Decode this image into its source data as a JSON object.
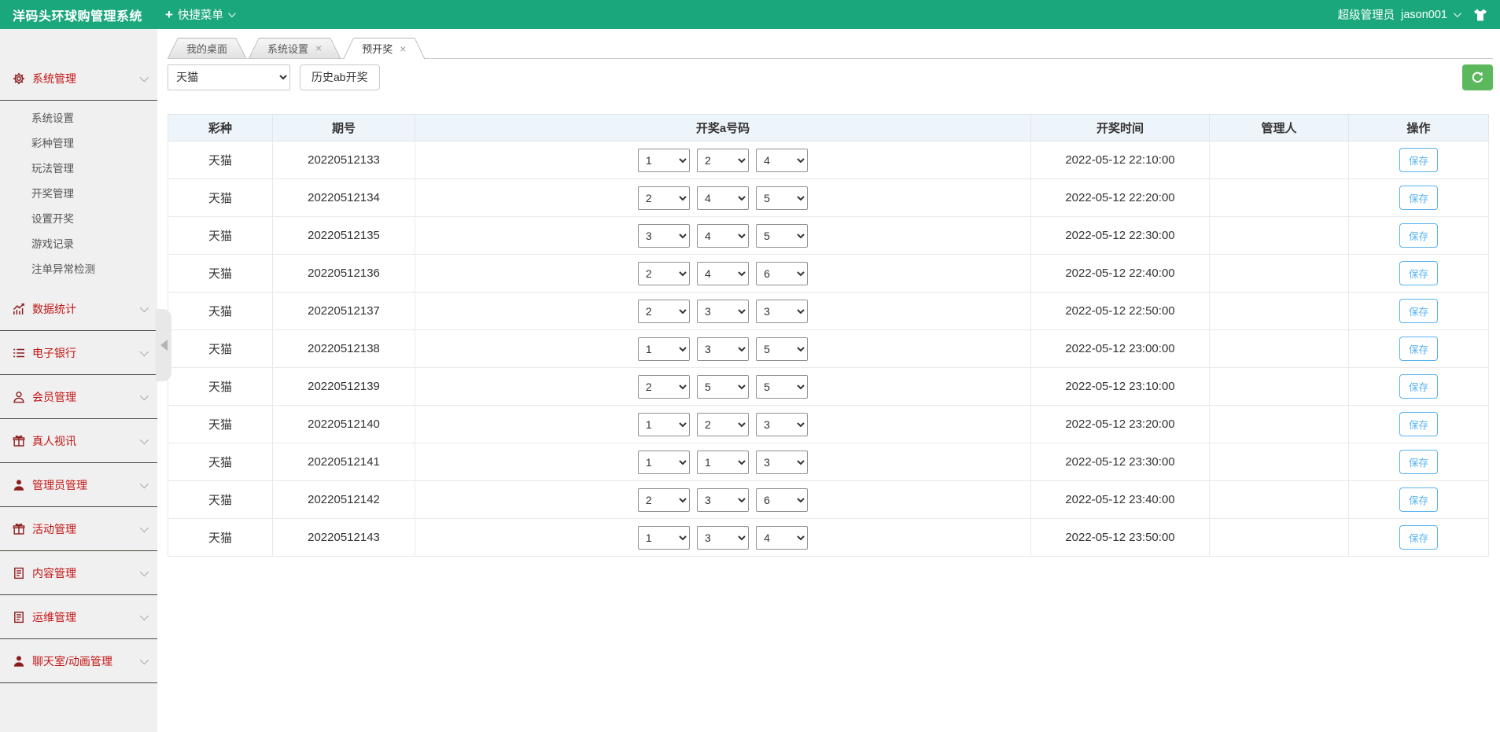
{
  "header": {
    "brand": "洋码头环球购管理系统",
    "quick_menu_label": "快捷菜单",
    "role": "超级管理员",
    "username": "jason001"
  },
  "sidebar": {
    "sections": [
      {
        "label": "系统管理",
        "icon": "gear-icon",
        "expanded": true,
        "children": [
          "系统设置",
          "彩种管理",
          "玩法管理",
          "开奖管理",
          "设置开奖",
          "游戏记录",
          "注单异常检测"
        ]
      },
      {
        "label": "数据统计",
        "icon": "chart-icon"
      },
      {
        "label": "电子银行",
        "icon": "list-icon"
      },
      {
        "label": "会员管理",
        "icon": "member-icon"
      },
      {
        "label": "真人视讯",
        "icon": "video-gift-icon"
      },
      {
        "label": "管理员管理",
        "icon": "admin-user-icon"
      },
      {
        "label": "活动管理",
        "icon": "gift-icon"
      },
      {
        "label": "内容管理",
        "icon": "content-doc-icon"
      },
      {
        "label": "运维管理",
        "icon": "ops-doc-icon"
      },
      {
        "label": "聊天室/动画管理",
        "icon": "chat-user-icon"
      }
    ]
  },
  "tabs": [
    {
      "label": "我的桌面",
      "closable": false,
      "active": false
    },
    {
      "label": "系统设置",
      "closable": true,
      "active": false
    },
    {
      "label": "预开奖",
      "closable": true,
      "active": true
    }
  ],
  "toolbar": {
    "lottery_select_value": "天猫",
    "history_button_label": "历史ab开奖"
  },
  "table": {
    "headers": [
      "彩种",
      "期号",
      "开奖a号码",
      "开奖时间",
      "管理人",
      "操作"
    ],
    "save_label": "保存",
    "rows": [
      {
        "lottery": "天猫",
        "period": "20220512133",
        "numbers": [
          "1",
          "2",
          "4"
        ],
        "time": "2022-05-12 22:10:00",
        "manager": ""
      },
      {
        "lottery": "天猫",
        "period": "20220512134",
        "numbers": [
          "2",
          "4",
          "5"
        ],
        "time": "2022-05-12 22:20:00",
        "manager": ""
      },
      {
        "lottery": "天猫",
        "period": "20220512135",
        "numbers": [
          "3",
          "4",
          "5"
        ],
        "time": "2022-05-12 22:30:00",
        "manager": ""
      },
      {
        "lottery": "天猫",
        "period": "20220512136",
        "numbers": [
          "2",
          "4",
          "6"
        ],
        "time": "2022-05-12 22:40:00",
        "manager": ""
      },
      {
        "lottery": "天猫",
        "period": "20220512137",
        "numbers": [
          "2",
          "3",
          "3"
        ],
        "time": "2022-05-12 22:50:00",
        "manager": ""
      },
      {
        "lottery": "天猫",
        "period": "20220512138",
        "numbers": [
          "1",
          "3",
          "5"
        ],
        "time": "2022-05-12 23:00:00",
        "manager": ""
      },
      {
        "lottery": "天猫",
        "period": "20220512139",
        "numbers": [
          "2",
          "5",
          "5"
        ],
        "time": "2022-05-12 23:10:00",
        "manager": ""
      },
      {
        "lottery": "天猫",
        "period": "20220512140",
        "numbers": [
          "1",
          "2",
          "3"
        ],
        "time": "2022-05-12 23:20:00",
        "manager": ""
      },
      {
        "lottery": "天猫",
        "period": "20220512141",
        "numbers": [
          "1",
          "1",
          "3"
        ],
        "time": "2022-05-12 23:30:00",
        "manager": ""
      },
      {
        "lottery": "天猫",
        "period": "20220512142",
        "numbers": [
          "2",
          "3",
          "6"
        ],
        "time": "2022-05-12 23:40:00",
        "manager": ""
      },
      {
        "lottery": "天猫",
        "period": "20220512143",
        "numbers": [
          "1",
          "3",
          "4"
        ],
        "time": "2022-05-12 23:50:00",
        "manager": ""
      }
    ]
  },
  "colors": {
    "header_green": "#1ba77c",
    "refresh_green": "#5cb85c",
    "save_blue": "#5ab3f0",
    "menu_red": "#c41414"
  }
}
